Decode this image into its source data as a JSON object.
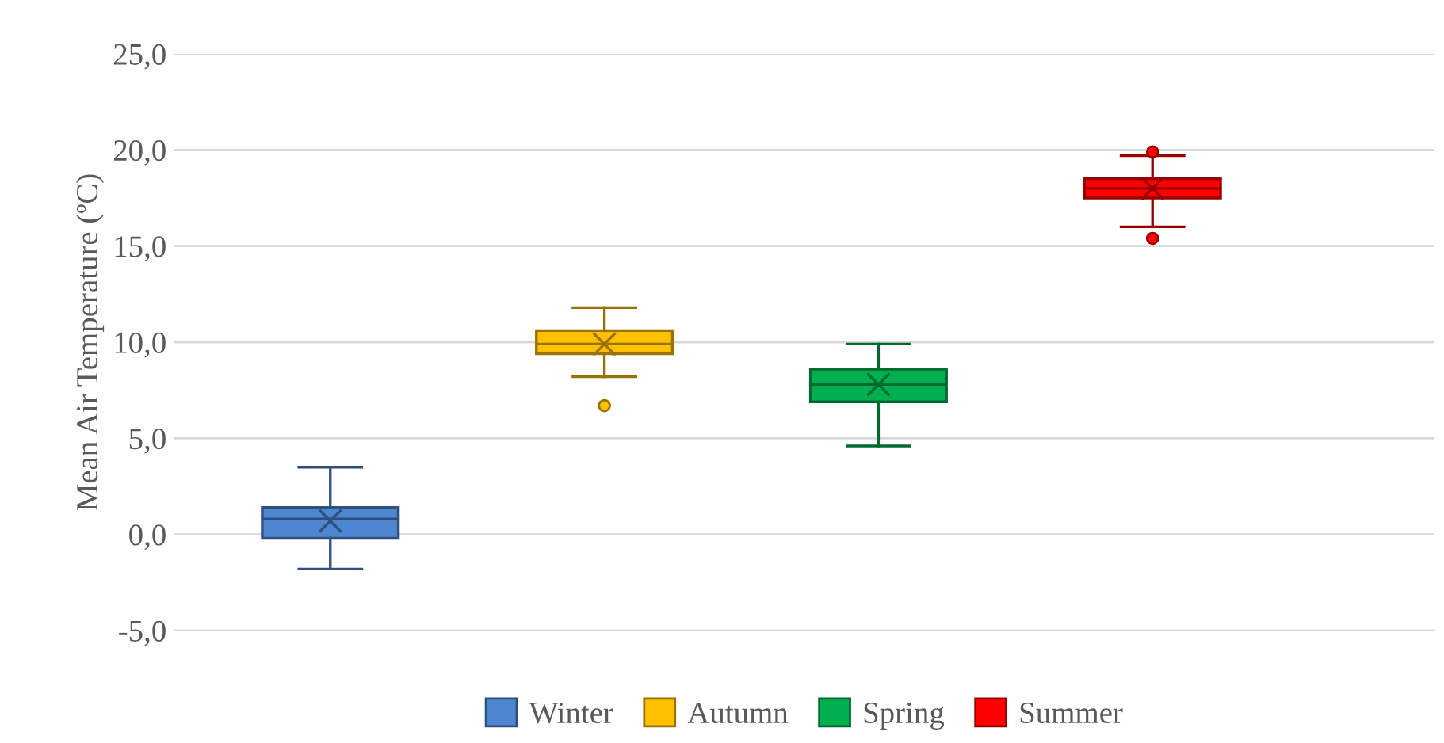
{
  "chart_data": {
    "type": "box",
    "ylabel": "Mean Air Temperature (ºC)",
    "categories": [
      null
    ],
    "series": [
      {
        "name": "Winter",
        "color": "#4f86d0",
        "boxes": [
          {
            "low": -1.8,
            "q1": -0.2,
            "median": 0.8,
            "q3": 1.4,
            "high": 3.5,
            "mean": 0.7
          }
        ]
      },
      {
        "name": "Autumn",
        "color": "#ffc000",
        "boxes": [
          {
            "low": 8.2,
            "q1": 9.4,
            "median": 9.9,
            "q3": 10.6,
            "high": 11.8,
            "mean": 9.9,
            "outliers": [
              6.7
            ]
          }
        ]
      },
      {
        "name": "Spring",
        "color": "#00b050",
        "boxes": [
          {
            "low": 4.6,
            "q1": 6.9,
            "median": 7.8,
            "q3": 8.6,
            "high": 9.9,
            "mean": 7.8
          }
        ]
      },
      {
        "name": "Summer",
        "color": "#ff0000",
        "boxes": [
          {
            "low": 16.0,
            "q1": 17.5,
            "median": 18.0,
            "q3": 18.5,
            "high": 19.7,
            "mean": 18.0,
            "outliers": [
              19.9,
              15.4
            ]
          }
        ]
      }
    ],
    "ylim": [
      -5,
      25
    ],
    "yticks": [
      {
        "value": -5,
        "label": "-5,0"
      },
      {
        "value": 0,
        "label": "0,0"
      },
      {
        "value": 5,
        "label": "5,0"
      },
      {
        "value": 10,
        "label": "10,0"
      },
      {
        "value": 15,
        "label": "15,0"
      },
      {
        "value": 20,
        "label": "20,0"
      },
      {
        "value": 25,
        "label": "25,0"
      }
    ],
    "grid": "y",
    "legend": "bottom",
    "marker": "circle"
  }
}
